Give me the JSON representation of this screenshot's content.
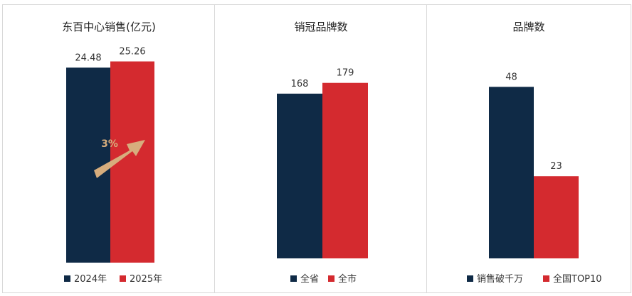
{
  "colors": {
    "navy": "#0f2a46",
    "red": "#d42a2f",
    "arrow": "#d7ad7d",
    "text": "#222222",
    "label": "#333333"
  },
  "chart_data": [
    {
      "type": "bar",
      "title": "东百中心销售(亿元)",
      "categories": [
        "2024年",
        "2025年"
      ],
      "values": [
        24.48,
        25.26
      ],
      "value_labels": [
        "24.48",
        "25.26"
      ],
      "colors": [
        "#0f2a46",
        "#d42a2f"
      ],
      "ylim": [
        0,
        27
      ],
      "annotation": "3%",
      "legend_placement": "bottom",
      "grid": false
    },
    {
      "type": "bar",
      "title": "销冠品牌数",
      "categories": [
        "全省",
        "全市"
      ],
      "values": [
        168,
        179
      ],
      "value_labels": [
        "168",
        "179"
      ],
      "colors": [
        "#0f2a46",
        "#d42a2f"
      ],
      "ylim": [
        0,
        215
      ],
      "legend_placement": "bottom",
      "grid": false
    },
    {
      "type": "bar",
      "title": "品牌数",
      "categories": [
        "销售破千万",
        "全国TOP10"
      ],
      "values": [
        48,
        23
      ],
      "value_labels": [
        "48",
        "23"
      ],
      "colors": [
        "#0f2a46",
        "#d42a2f"
      ],
      "ylim": [
        0,
        59
      ],
      "legend_placement": "bottom",
      "grid": false
    }
  ]
}
